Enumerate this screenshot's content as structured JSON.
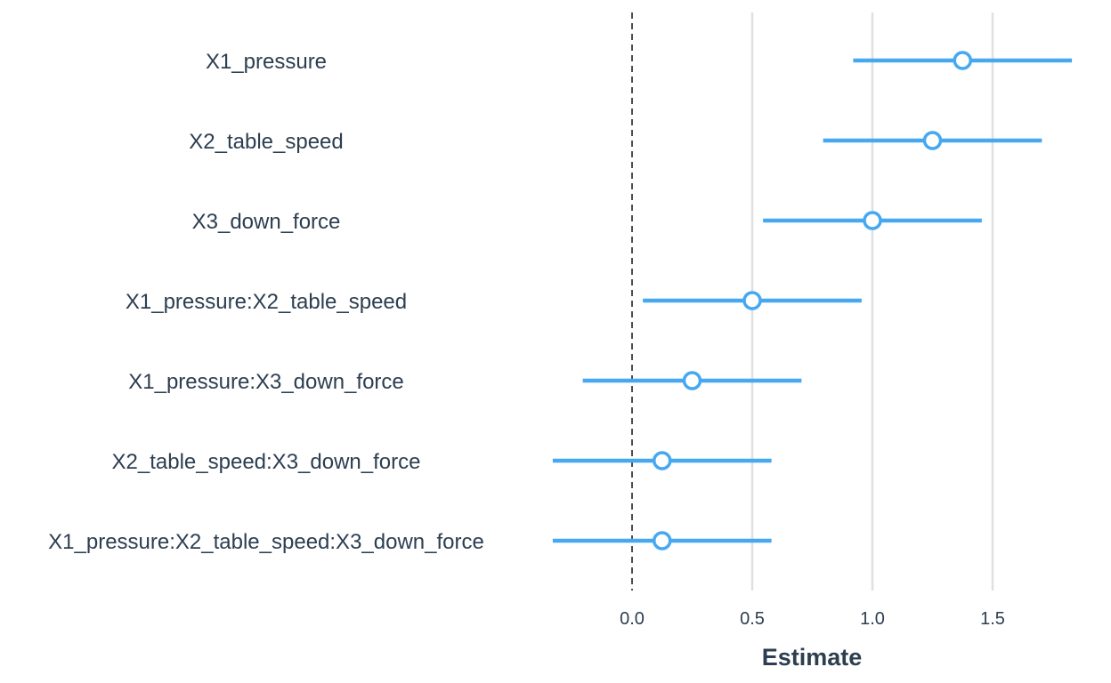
{
  "chart_data": {
    "type": "scatter",
    "subtype": "coefficient-interval-plot",
    "title": "",
    "xlabel": "Estimate",
    "ylabel": "",
    "xlim": [
      -0.33,
      1.85
    ],
    "x_ticks": [
      0.0,
      0.5,
      1.0,
      1.5
    ],
    "x_tick_labels": [
      "0.0",
      "0.5",
      "1.0",
      "1.5"
    ],
    "reference_line": 0,
    "grid": "vertical",
    "legend": "none",
    "colors": {
      "point": "#45a8f0",
      "interval": "#45a8f0",
      "grid": "#e0e0e0",
      "reference": "#222222",
      "text": "#2c3e50"
    },
    "terms": [
      {
        "label": "X1_pressure",
        "estimate": 1.375,
        "lower": 0.92,
        "upper": 1.83
      },
      {
        "label": "X2_table_speed",
        "estimate": 1.25,
        "lower": 0.795,
        "upper": 1.705
      },
      {
        "label": "X3_down_force",
        "estimate": 1.0,
        "lower": 0.545,
        "upper": 1.455
      },
      {
        "label": "X1_pressure:X2_table_speed",
        "estimate": 0.5,
        "lower": 0.045,
        "upper": 0.955
      },
      {
        "label": "X1_pressure:X3_down_force",
        "estimate": 0.25,
        "lower": -0.205,
        "upper": 0.705
      },
      {
        "label": "X2_table_speed:X3_down_force",
        "estimate": 0.125,
        "lower": -0.33,
        "upper": 0.58
      },
      {
        "label": "X1_pressure:X2_table_speed:X3_down_force",
        "estimate": 0.125,
        "lower": -0.33,
        "upper": 0.58
      }
    ]
  }
}
